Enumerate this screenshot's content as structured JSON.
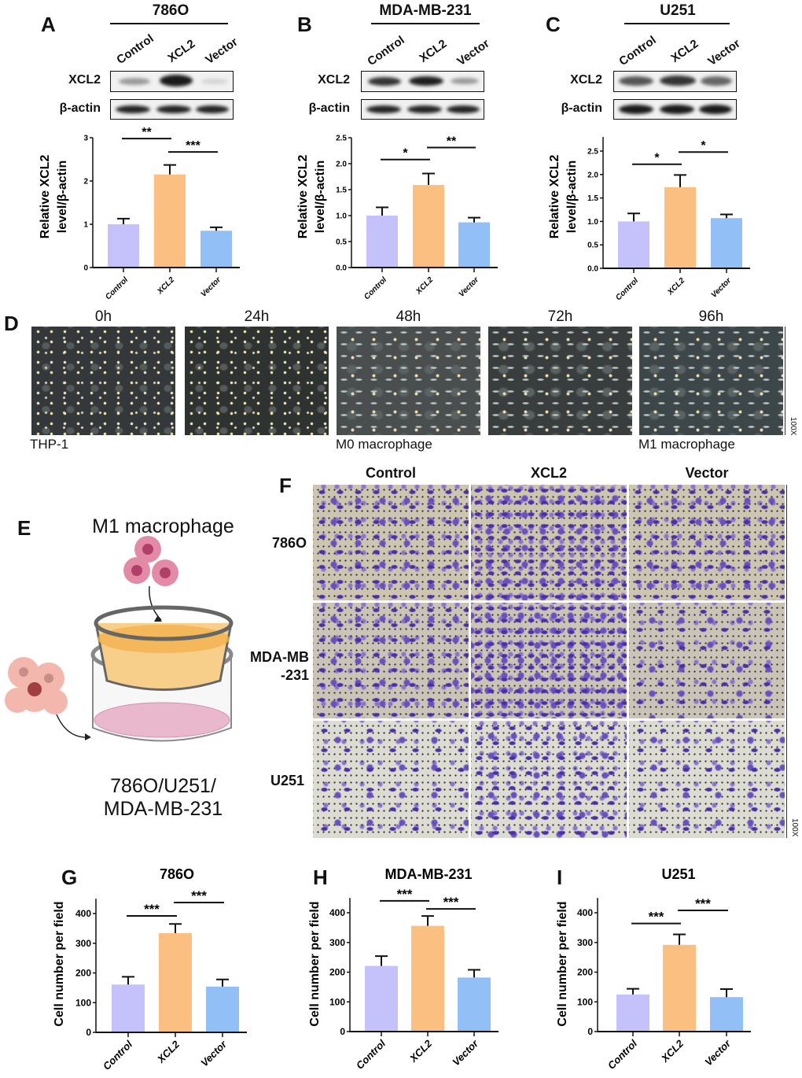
{
  "panel_labels": {
    "A": "A",
    "B": "B",
    "C": "C",
    "D": "D",
    "E": "E",
    "F": "F",
    "G": "G",
    "H": "H",
    "I": "I"
  },
  "western": [
    {
      "title": "786O",
      "columns": [
        "Control",
        "XCL2",
        "Vector"
      ],
      "rows": [
        "XCL2",
        "β-actin"
      ]
    },
    {
      "title": "MDA-MB-231",
      "columns": [
        "Control",
        "XCL2",
        "Vector"
      ],
      "rows": [
        "XCL2",
        "β-actin"
      ]
    },
    {
      "title": "U251",
      "columns": [
        "Control",
        "XCL2",
        "Vector"
      ],
      "rows": [
        "XCL2",
        "β-actin"
      ]
    }
  ],
  "timecourse": {
    "times": [
      "0h",
      "24h",
      "48h",
      "72h",
      "96h"
    ],
    "captions": [
      "THP-1",
      "M0 macrophage",
      "M1 macrophage"
    ],
    "magnification": "100X"
  },
  "schematic": {
    "top_label": "M1 macrophage",
    "bottom_line_1": "786O/U251/",
    "bottom_line_2": "MDA-MB-231"
  },
  "transwell": {
    "columns": [
      "Control",
      "XCL2",
      "Vector"
    ],
    "rows": [
      [
        "786O"
      ],
      [
        "MDA-MB",
        "-231"
      ],
      [
        "U251"
      ]
    ],
    "magnification": "100X"
  },
  "colors": {
    "Control": "#c4c1fb",
    "XCL2": "#fbbf82",
    "Vector": "#92bff5"
  },
  "chart_data": [
    {
      "type": "bar",
      "panel": "A",
      "title": "",
      "ylabel": [
        "Relative XCL2",
        "level/β-actin"
      ],
      "categories": [
        "Control",
        "XCL2",
        "Vector"
      ],
      "values": [
        1.0,
        2.15,
        0.85
      ],
      "errors": [
        0.13,
        0.22,
        0.08
      ],
      "ylim": [
        0,
        3
      ],
      "ytick_labels": [
        "0",
        "1",
        "2",
        "3"
      ],
      "significance": [
        {
          "from": 0,
          "to": 1,
          "label": "**",
          "y": 2.98
        },
        {
          "from": 1,
          "to": 2,
          "label": "***",
          "y": 2.67
        }
      ]
    },
    {
      "type": "bar",
      "panel": "B",
      "title": "",
      "ylabel": [
        "Relative XCL2",
        "level/β-actin"
      ],
      "categories": [
        "Control",
        "XCL2",
        "Vector"
      ],
      "values": [
        1.0,
        1.59,
        0.87
      ],
      "errors": [
        0.16,
        0.22,
        0.09
      ],
      "ylim": [
        0,
        2.5
      ],
      "ytick_labels": [
        "0.0",
        "0.5",
        "1.0",
        "1.5",
        "2.0",
        "2.5"
      ],
      "significance": [
        {
          "from": 0,
          "to": 1,
          "label": "*",
          "y": 2.08
        },
        {
          "from": 1,
          "to": 2,
          "label": "**",
          "y": 2.31
        }
      ]
    },
    {
      "type": "bar",
      "panel": "C",
      "title": "",
      "ylabel": [
        "Relative XCL2",
        "level/β-actin"
      ],
      "categories": [
        "Control",
        "XCL2",
        "Vector"
      ],
      "values": [
        1.0,
        1.73,
        1.07
      ],
      "errors": [
        0.17,
        0.26,
        0.08
      ],
      "ylim": [
        0,
        2.8
      ],
      "ytick_labels": [
        "0.0",
        "0.5",
        "1.0",
        "1.5",
        "2.0",
        "2.5"
      ],
      "significance": [
        {
          "from": 0,
          "to": 1,
          "label": "*",
          "y": 2.22
        },
        {
          "from": 1,
          "to": 2,
          "label": "*",
          "y": 2.48
        }
      ]
    },
    {
      "type": "bar",
      "panel": "G",
      "title": "786O",
      "ylabel": [
        "Cell number per field"
      ],
      "categories": [
        "Control",
        "XCL2",
        "Vector"
      ],
      "values": [
        161,
        334,
        154
      ],
      "errors": [
        26,
        31,
        24
      ],
      "ylim": [
        0,
        450
      ],
      "ytick_labels": [
        "0",
        "100",
        "200",
        "300",
        "400"
      ],
      "significance": [
        {
          "from": 0,
          "to": 1,
          "label": "***",
          "y": 392
        },
        {
          "from": 1,
          "to": 2,
          "label": "***",
          "y": 437
        }
      ]
    },
    {
      "type": "bar",
      "panel": "H",
      "title": "MDA-MB-231",
      "ylabel": [
        "Cell number per field"
      ],
      "categories": [
        "Control",
        "XCL2",
        "Vector"
      ],
      "values": [
        221,
        356,
        182
      ],
      "errors": [
        33,
        33,
        26
      ],
      "ylim": [
        0,
        450
      ],
      "ytick_labels": [
        "0",
        "100",
        "200",
        "300",
        "400"
      ],
      "significance": [
        {
          "from": 0,
          "to": 1,
          "label": "***",
          "y": 440
        },
        {
          "from": 1,
          "to": 2,
          "label": "***",
          "y": 413
        }
      ]
    },
    {
      "type": "bar",
      "panel": "I",
      "title": "U251",
      "ylabel": [
        "Cell number per field"
      ],
      "categories": [
        "Control",
        "XCL2",
        "Vector"
      ],
      "values": [
        125,
        292,
        116
      ],
      "errors": [
        19,
        35,
        27
      ],
      "ylim": [
        0,
        450
      ],
      "ytick_labels": [
        "0",
        "100",
        "200",
        "300",
        "400"
      ],
      "significance": [
        {
          "from": 0,
          "to": 1,
          "label": "***",
          "y": 364
        },
        {
          "from": 1,
          "to": 2,
          "label": "***",
          "y": 408
        }
      ]
    }
  ]
}
